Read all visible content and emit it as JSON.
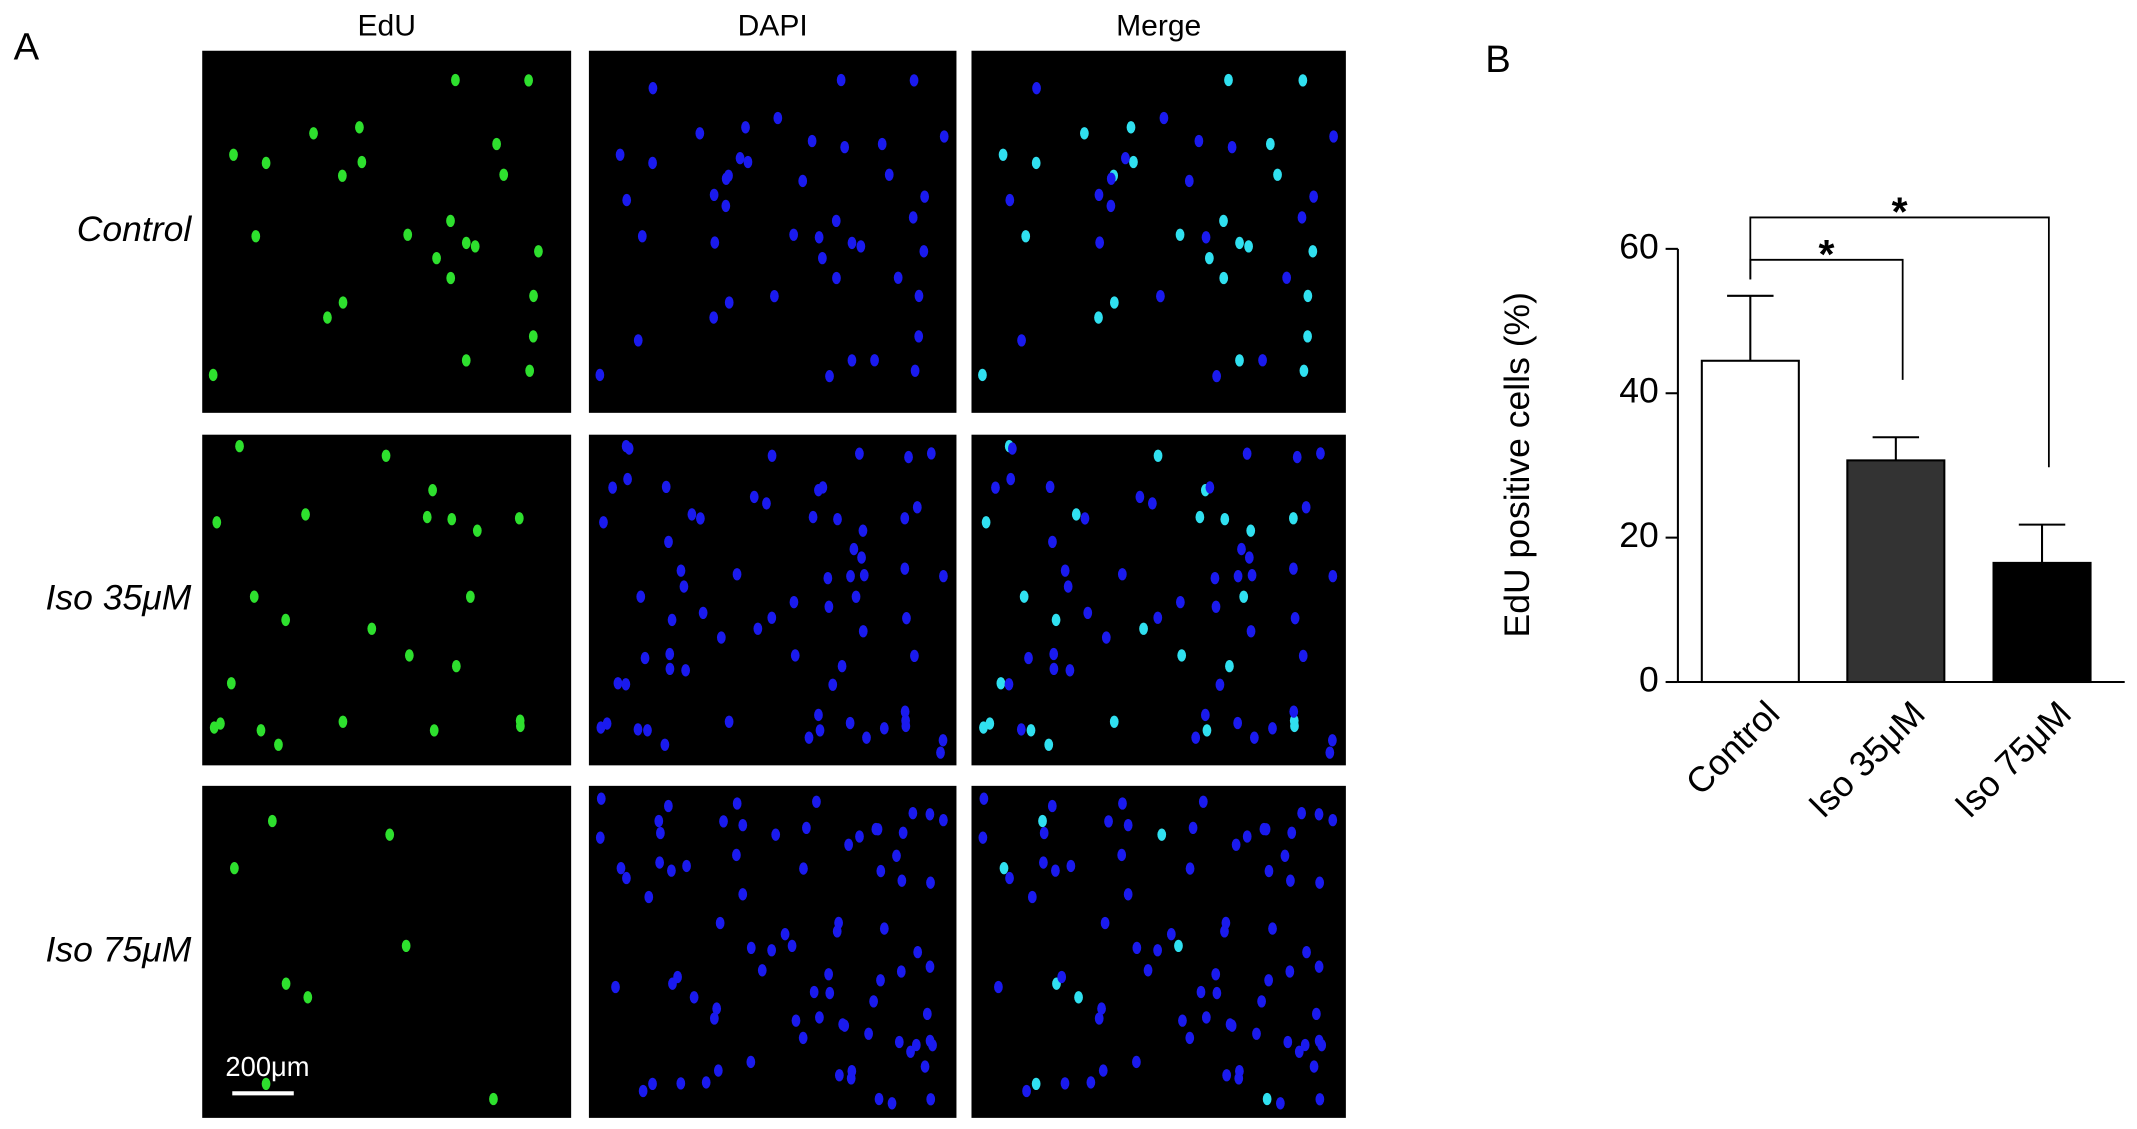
{
  "panel_a": {
    "label": "A",
    "columns": [
      "EdU",
      "DAPI",
      "Merge"
    ],
    "rows": [
      "Control",
      "Iso 35μM",
      "Iso 75μM"
    ],
    "scale_bar": "200μm"
  },
  "chart_data": {
    "type": "bar",
    "panel_label": "B",
    "y_label": "EdU positive cells (%)",
    "categories": [
      "Control",
      "Iso 35μM",
      "Iso 75μM"
    ],
    "values": [
      44.5,
      30.7,
      16.5
    ],
    "errors": [
      9,
      3.2,
      5.3
    ],
    "colors": [
      "#ffffff",
      "#333333",
      "#000000"
    ],
    "ylim": [
      0,
      60
    ],
    "yticks": [
      0,
      20,
      40,
      60
    ],
    "annotations": [
      "*",
      "*"
    ]
  }
}
